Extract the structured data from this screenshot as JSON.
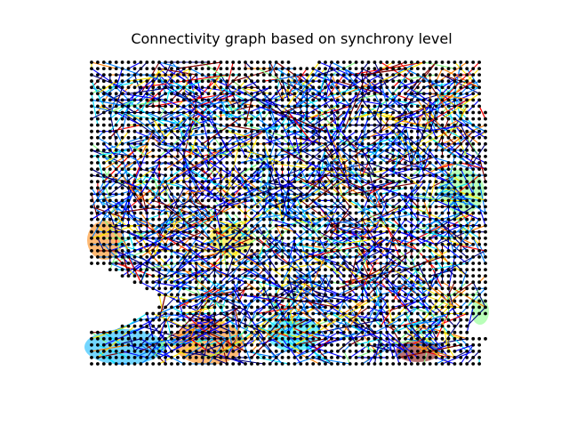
{
  "chart_data": {
    "type": "scatter",
    "title": "Connectivity graph based on synchrony level",
    "xlabel": "",
    "ylabel": "",
    "axes_visible": false,
    "grid": false,
    "legend": "none",
    "node_color": "#000000",
    "edge_colormap": "jet",
    "colors": {
      "jet": [
        "#00007f",
        "#0000ff",
        "#007fff",
        "#00e5ff",
        "#7fff7f",
        "#ffe500",
        "#ff7f00",
        "#ff0000",
        "#7f0000"
      ],
      "background": "#ffffff"
    },
    "grid_nodes": {
      "columns": 65,
      "rows": 49,
      "x_range": [
        0,
        64
      ],
      "y_range": [
        0,
        48
      ],
      "notch": "lower-left triangular region without nodes"
    }
  }
}
